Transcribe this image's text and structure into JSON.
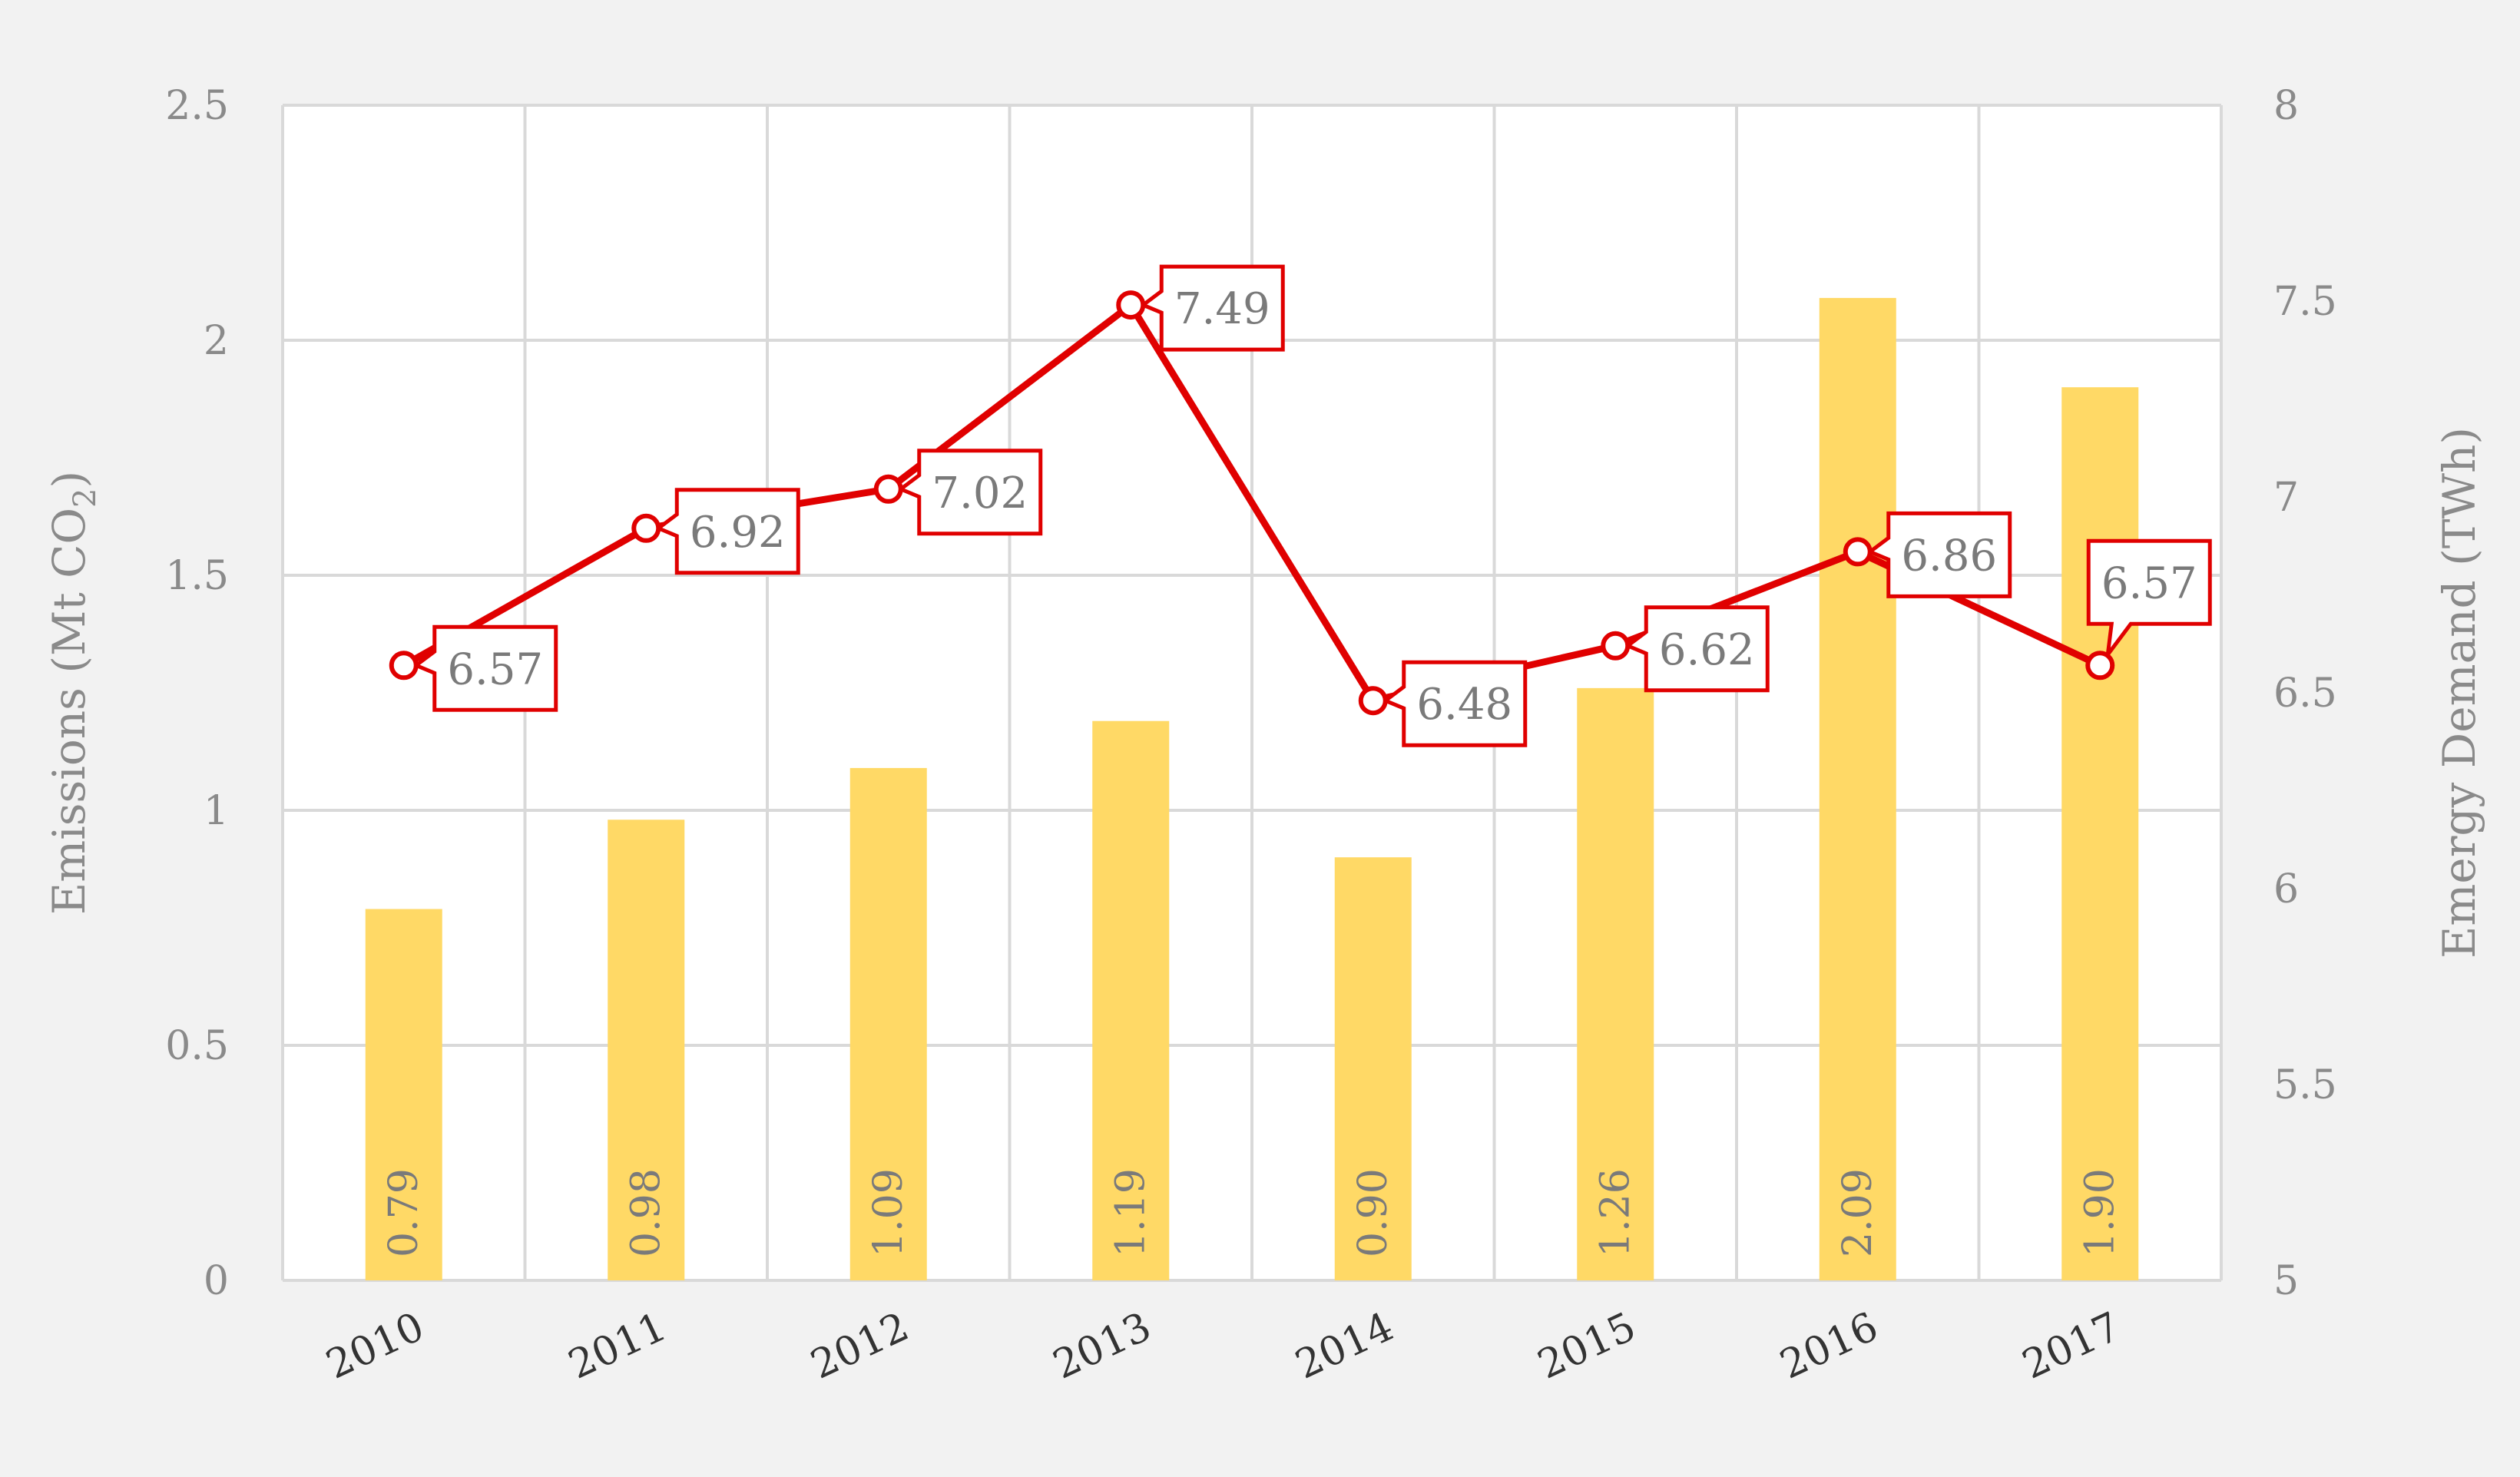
{
  "chart_data": {
    "type": "bar",
    "categories": [
      "2010",
      "2011",
      "2012",
      "2013",
      "2014",
      "2015",
      "2016",
      "2017"
    ],
    "series": [
      {
        "type": "bar",
        "axis": "left",
        "values": [
          0.79,
          0.98,
          1.09,
          1.19,
          0.9,
          1.26,
          2.09,
          1.9
        ],
        "labels": [
          "0.79",
          "0.98",
          "1.09",
          "1.19",
          "0.90",
          "1.26",
          "2.09",
          "1.90"
        ]
      },
      {
        "type": "line",
        "axis": "right",
        "values": [
          6.57,
          6.92,
          7.02,
          7.49,
          6.48,
          6.62,
          6.86,
          6.57
        ],
        "labels": [
          "6.57",
          "6.92",
          "7.02",
          "7.49",
          "6.48",
          "6.62",
          "6.86",
          "6.57"
        ]
      }
    ],
    "ylabel": "Emissions (Mt CO",
    "ylabel_subscript": "2",
    "ylabel_suffix": ")",
    "y2label": "Emergy Demand (TWh)",
    "ylim": [
      0,
      2.5
    ],
    "y2lim": [
      5,
      8
    ],
    "yticks": [
      "0",
      "0.5",
      "1",
      "1.5",
      "2",
      "2.5"
    ],
    "y2ticks": [
      "5",
      "5.5",
      "6",
      "6.5",
      "7",
      "7.5",
      "8"
    ],
    "grid": true,
    "legend": "none",
    "colors": {
      "bar": "#ffd966",
      "line": "#e00000",
      "grid": "#d9d9d9",
      "background": "#f2f2f2",
      "plot_background": "#ffffff"
    }
  }
}
